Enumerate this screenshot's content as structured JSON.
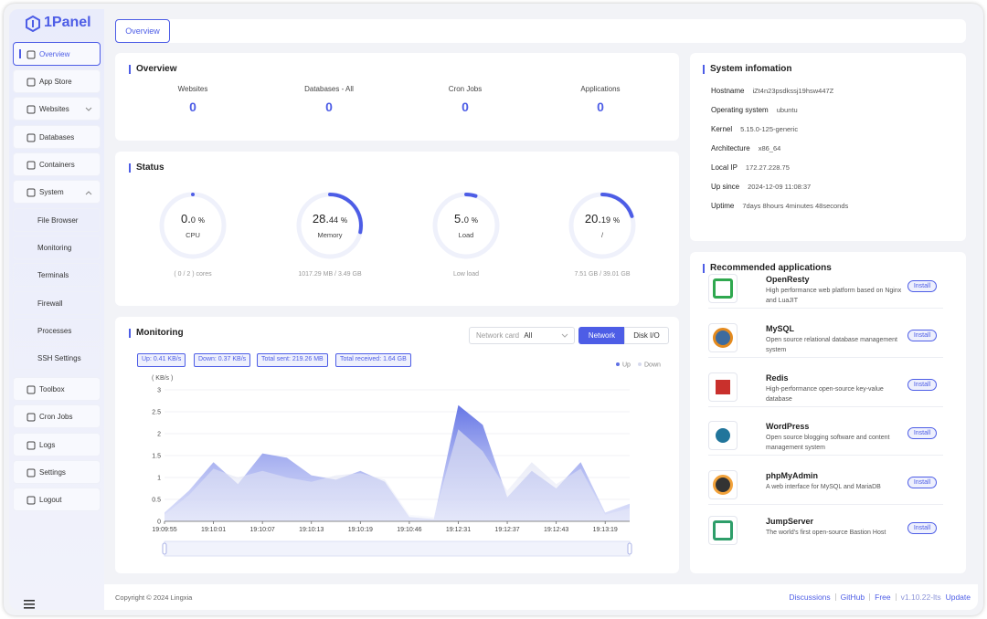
{
  "sidebar": {
    "logo": "1Panel",
    "menu_top": [
      "Overview",
      "App Store",
      "Websites",
      "Databases",
      "Containers",
      "System"
    ],
    "system_submenu": [
      "File Browser",
      "Monitoring",
      "Terminals",
      "Firewall",
      "Processes",
      "SSH Settings"
    ],
    "menu_bottom": [
      "Toolbox",
      "Cron Jobs",
      "Logs",
      "Settings",
      "Logout"
    ]
  },
  "tab": "Overview",
  "overview": {
    "title": "Overview",
    "items": [
      {
        "label": "Websites",
        "value": 0
      },
      {
        "label": "Databases - All",
        "value": 0
      },
      {
        "label": "Cron Jobs",
        "value": 0
      },
      {
        "label": "Applications",
        "value": 0
      }
    ]
  },
  "status": {
    "title": "Status",
    "gauges": [
      {
        "value": 0.0,
        "integer": "0.",
        "decimal": "0",
        "unit": "%",
        "label": "CPU",
        "detail": "( 0 / 2 ) cores"
      },
      {
        "value": 28.44,
        "integer": "28.",
        "decimal": "44",
        "unit": "%",
        "label": "Memory",
        "detail": "1017.29 MB / 3.49 GB"
      },
      {
        "value": 5.0,
        "integer": "5.",
        "decimal": "0",
        "unit": "%",
        "label": "Load",
        "detail": "Low load"
      },
      {
        "value": 20.19,
        "integer": "20.",
        "decimal": "19",
        "unit": "%",
        "label": "/",
        "detail": "7.51 GB / 39.01 GB"
      }
    ]
  },
  "monitoring": {
    "title": "Monitoring",
    "select_label": "Network card",
    "select_value": "All",
    "buttons": [
      "Network",
      "Disk I/O"
    ],
    "chips": [
      "Up: 0.41 KB/s",
      "Down: 0.37 KB/s",
      "Total sent: 219.26 MB",
      "Total received: 1.64 GB"
    ],
    "chart_data": {
      "type": "area",
      "y_unit": "( KB/s )",
      "categories": [
        "19:09:55",
        null,
        "19:10:01",
        null,
        "19:10:07",
        null,
        "19:10:13",
        null,
        "19:10:19",
        null,
        "19:10:46",
        null,
        "19:12:31",
        null,
        "19:12:37",
        null,
        "19:12:43",
        null,
        "19:13:19",
        null
      ],
      "series": [
        {
          "name": "Up",
          "color": "#5e6fe4",
          "values": [
            0.2,
            0.7,
            1.35,
            0.85,
            1.55,
            1.45,
            1.05,
            0.95,
            1.15,
            0.9,
            0.1,
            0.05,
            2.65,
            2.2,
            0.55,
            1.15,
            0.75,
            1.35,
            0.2,
            0.4
          ]
        },
        {
          "name": "Down",
          "color": "#d6d9ee",
          "values": [
            0.15,
            0.6,
            1.2,
            1.0,
            1.15,
            1.0,
            0.9,
            1.05,
            1.1,
            0.95,
            0.15,
            0.1,
            2.1,
            1.6,
            0.7,
            1.35,
            0.85,
            1.2,
            0.15,
            0.3
          ]
        }
      ],
      "ylim": [
        0,
        3
      ],
      "yticks": [
        0,
        0.5,
        1,
        1.5,
        2,
        2.5,
        3
      ]
    }
  },
  "system_info": {
    "title": "System infomation",
    "rows": [
      {
        "label": "Hostname",
        "value": "iZt4n23psdkssj19hsw447Z"
      },
      {
        "label": "Operating system",
        "value": "ubuntu"
      },
      {
        "label": "Kernel",
        "value": "5.15.0-125-generic"
      },
      {
        "label": "Architecture",
        "value": "x86_64"
      },
      {
        "label": "Local IP",
        "value": "172.27.228.75"
      },
      {
        "label": "Up since",
        "value": "2024-12-09 11:08:37"
      },
      {
        "label": "Uptime",
        "value": "7days 8hours 4minutes 48seconds"
      }
    ]
  },
  "recommended": {
    "title": "Recommended applications",
    "button": "Install",
    "apps": [
      {
        "name": "OpenResty",
        "description": "High performance web platform based on Nginx and LuaJIT"
      },
      {
        "name": "MySQL",
        "description": "Open source relational database management system"
      },
      {
        "name": "Redis",
        "description": "High-performance open-source key-value database"
      },
      {
        "name": "WordPress",
        "description": "Open source blogging software and content management system"
      },
      {
        "name": "phpMyAdmin",
        "description": "A web interface for MySQL and MariaDB"
      },
      {
        "name": "JumpServer",
        "description": "The world's first open-source Bastion Host"
      }
    ]
  },
  "footer": {
    "copyright": "Copyright © 2024 Lingxia",
    "links": [
      "Discussions",
      "GitHub",
      "Free"
    ],
    "version": "v1.10.22-lts",
    "update": "Update"
  }
}
